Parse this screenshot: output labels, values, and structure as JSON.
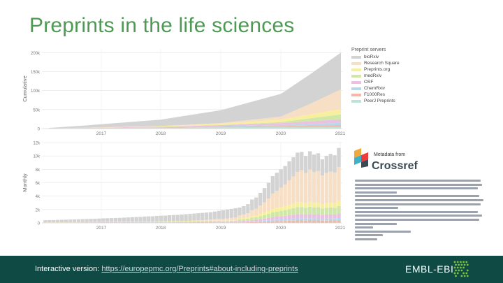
{
  "slide": {
    "title": "Preprints in the life sciences"
  },
  "footer": {
    "interactive_label": "Interactive version: ",
    "interactive_link": "https://europepmc.org/Preprints#about-including-preprints",
    "logo_text": "EMBL-EBI"
  },
  "crossref": {
    "small_label": "Metadata from",
    "big_label": "Crossref"
  },
  "colors": {
    "title_green": "#4e9a55",
    "footer_bg": "#0f4a44"
  },
  "chart_data": [
    {
      "type": "area",
      "ylabel": "Cumulative",
      "x_ticks": [
        "2017",
        "2018",
        "2019",
        "2020",
        "2021"
      ],
      "y_ticks": [
        "0",
        "50k",
        "100k",
        "150k",
        "200k"
      ],
      "ylim": [
        0,
        210000
      ],
      "legend_title": "Preprint servers",
      "legend_position": "right",
      "series": [
        {
          "name": "bioRxiv",
          "color": "#d3d3d3"
        },
        {
          "name": "Research Square",
          "color": "#f6dfc4"
        },
        {
          "name": "Preprints.org",
          "color": "#f7ef9e"
        },
        {
          "name": "medRxiv",
          "color": "#cfe8a8"
        },
        {
          "name": "OSF",
          "color": "#ecc0e2"
        },
        {
          "name": "ChemRxiv",
          "color": "#b7d9ec"
        },
        {
          "name": "F1000Res",
          "color": "#f4b9a6"
        },
        {
          "name": "PeerJ Preprints",
          "color": "#bfe2d7"
        }
      ],
      "x": [
        "2016-01",
        "2017-01",
        "2018-01",
        "2019-01",
        "2020-01",
        "2020-07",
        "2021-01"
      ],
      "stack_values": {
        "bioRxiv": [
          1000,
          6000,
          17000,
          34000,
          60000,
          78000,
          97000
        ],
        "Research Square": [
          0,
          0,
          0,
          1500,
          8000,
          28000,
          52000
        ],
        "Preprints.org": [
          0,
          300,
          1500,
          3500,
          6500,
          10000,
          14000
        ],
        "medRxiv": [
          0,
          0,
          0,
          300,
          2500,
          8000,
          13000
        ],
        "OSF": [
          0,
          500,
          1500,
          3000,
          5000,
          7000,
          9000
        ],
        "ChemRxiv": [
          0,
          0,
          200,
          800,
          2500,
          4000,
          6000
        ],
        "F1000Res": [
          0,
          300,
          900,
          1800,
          3000,
          4000,
          5000
        ],
        "PeerJ Preprints": [
          500,
          1500,
          2500,
          3500,
          4000,
          4200,
          4300
        ]
      }
    },
    {
      "type": "bar",
      "ylabel": "Monthly",
      "x_ticks": [
        "2017",
        "2018",
        "2019",
        "2020",
        "2021"
      ],
      "y_ticks": [
        "0",
        "2k",
        "4k",
        "6k",
        "8k",
        "10k",
        "12k"
      ],
      "ylim": [
        0,
        12000
      ],
      "monthly_totals": [
        400,
        420,
        430,
        450,
        470,
        480,
        500,
        520,
        540,
        560,
        580,
        600,
        620,
        650,
        680,
        700,
        720,
        740,
        760,
        790,
        820,
        850,
        880,
        900,
        950,
        980,
        1000,
        1050,
        1080,
        1100,
        1150,
        1180,
        1200,
        1250,
        1300,
        1350,
        1400,
        1450,
        1500,
        1550,
        1600,
        1700,
        1800,
        1900,
        2000,
        2100,
        2200,
        2300,
        2500,
        2800,
        3500,
        3800,
        4500,
        5200,
        6000,
        7000,
        7500,
        8000,
        8500,
        9200,
        9800,
        10500,
        10600,
        10000,
        10700,
        10200,
        10400,
        9500,
        10000,
        10300,
        10100,
        11200
      ]
    }
  ]
}
